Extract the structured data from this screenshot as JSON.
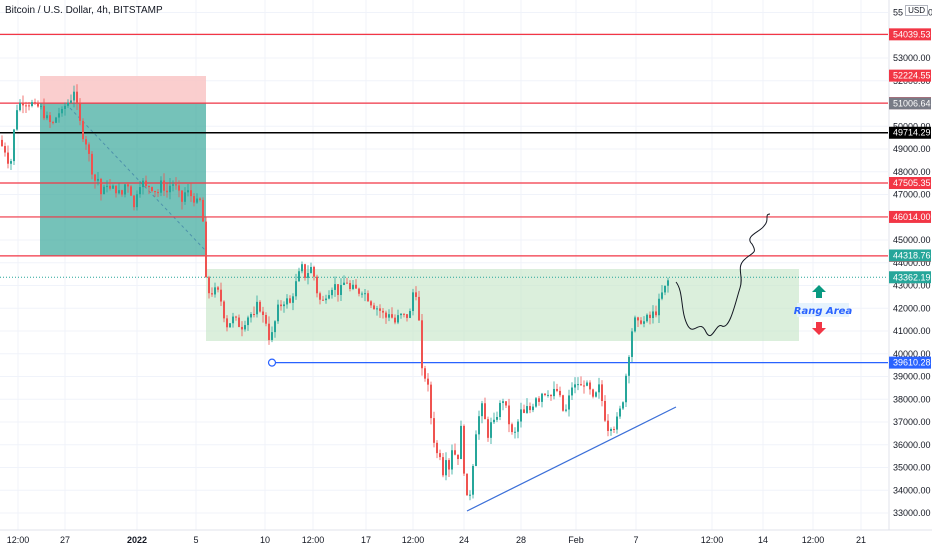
{
  "header": {
    "title": "Bitcoin / U.S. Dollar, 4h, BITSTAMP",
    "currency": "USD"
  },
  "colors": {
    "up": "#26a69a",
    "down": "#ef5350",
    "level": "#f23645",
    "black": "#000000",
    "blue": "#2962ff",
    "range": "#c8e6c9",
    "tp": "#3aa89b",
    "sl": "#f9c5c5",
    "arrow_up": "#089981",
    "arrow_down": "#f23645",
    "current": "#26a69a",
    "grey_tag": "#787b86"
  },
  "chart_data": {
    "type": "candlestick",
    "ylim": [
      32700,
      56000
    ],
    "y_ticks": [
      "55 000.00",
      "53000.00",
      "52000.00",
      "51000.00",
      "50000.00",
      "49000.00",
      "48000.00",
      "47000.00",
      "46000.00",
      "45000.00",
      "44000.00",
      "43000.00",
      "42000.00",
      "41000.00",
      "40000.00",
      "39000.00",
      "38000.00",
      "37000.00",
      "36000.00",
      "35000.00",
      "34000.00",
      "33000.00"
    ],
    "x_ticks": [
      "12:00",
      "27",
      "2022",
      "5",
      "10",
      "12:00",
      "17",
      "12:00",
      "24",
      "28",
      "Feb",
      "7",
      "12:00",
      "14",
      "12:00",
      "21"
    ],
    "levels": [
      {
        "price": "54039.53",
        "color": "#f23645"
      },
      {
        "price": "51017.57",
        "color": "#f23645"
      },
      {
        "price": "49714.29",
        "color": "#000000"
      },
      {
        "price": "47505.35",
        "color": "#f23645"
      },
      {
        "price": "46014.00",
        "color": "#f23645"
      },
      {
        "price": "44302.37",
        "color": "#f23645"
      },
      {
        "price": "39610.28",
        "color": "#2962ff"
      }
    ],
    "price_tags": [
      {
        "price": "52224.55",
        "color": "#f23645"
      },
      {
        "price": "51006.64",
        "color": "#787b86"
      },
      {
        "price": "44318.76",
        "color": "#26a69a"
      },
      {
        "price": "43362.19",
        "color": "#26a69a"
      }
    ],
    "annotations": {
      "range_label": "Rang Area"
    },
    "candle_waypoints": [
      [
        0,
        49400
      ],
      [
        3,
        49000
      ],
      [
        6,
        48900
      ],
      [
        8,
        48500
      ],
      [
        10,
        48300
      ],
      [
        12,
        48700
      ],
      [
        14,
        49800
      ],
      [
        16,
        50900
      ],
      [
        18,
        50700
      ],
      [
        20,
        51000
      ],
      [
        24,
        51100
      ],
      [
        28,
        51000
      ],
      [
        32,
        51000
      ],
      [
        36,
        50800
      ],
      [
        40,
        50900
      ],
      [
        44,
        50500
      ],
      [
        48,
        50300
      ],
      [
        52,
        50000
      ],
      [
        55,
        50300
      ],
      [
        58,
        50600
      ],
      [
        62,
        50600
      ],
      [
        66,
        51000
      ],
      [
        70,
        51100
      ],
      [
        74,
        51600
      ],
      [
        78,
        50600
      ],
      [
        82,
        49700
      ],
      [
        86,
        49300
      ],
      [
        90,
        48500
      ],
      [
        94,
        47600
      ],
      [
        98,
        47700
      ],
      [
        102,
        46800
      ],
      [
        106,
        47600
      ],
      [
        110,
        47200
      ],
      [
        114,
        47300
      ],
      [
        118,
        47100
      ],
      [
        122,
        47000
      ],
      [
        126,
        47600
      ],
      [
        130,
        47300
      ],
      [
        134,
        46400
      ],
      [
        138,
        47400
      ],
      [
        142,
        47600
      ],
      [
        146,
        47300
      ],
      [
        150,
        47400
      ],
      [
        154,
        47200
      ],
      [
        158,
        47100
      ],
      [
        162,
        47600
      ],
      [
        166,
        47000
      ],
      [
        170,
        47400
      ],
      [
        174,
        47500
      ],
      [
        178,
        47100
      ],
      [
        182,
        46700
      ],
      [
        186,
        47200
      ],
      [
        190,
        47000
      ],
      [
        194,
        46800
      ],
      [
        198,
        46600
      ],
      [
        202,
        46800
      ],
      [
        204,
        44800
      ],
      [
        206,
        43200
      ],
      [
        208,
        42800
      ],
      [
        210,
        42600
      ],
      [
        214,
        42800
      ],
      [
        218,
        42700
      ],
      [
        222,
        42200
      ],
      [
        226,
        41200
      ],
      [
        230,
        41400
      ],
      [
        234,
        41600
      ],
      [
        238,
        41300
      ],
      [
        242,
        41200
      ],
      [
        246,
        41500
      ],
      [
        250,
        41800
      ],
      [
        254,
        41600
      ],
      [
        258,
        42300
      ],
      [
        262,
        41700
      ],
      [
        266,
        41400
      ],
      [
        270,
        40500
      ],
      [
        274,
        41200
      ],
      [
        278,
        42000
      ],
      [
        282,
        42200
      ],
      [
        286,
        42400
      ],
      [
        290,
        42200
      ],
      [
        294,
        42800
      ],
      [
        298,
        43400
      ],
      [
        302,
        43800
      ],
      [
        306,
        43300
      ],
      [
        310,
        43900
      ],
      [
        314,
        43400
      ],
      [
        318,
        42500
      ],
      [
        322,
        42200
      ],
      [
        326,
        42600
      ],
      [
        330,
        42800
      ],
      [
        334,
        43100
      ],
      [
        338,
        42700
      ],
      [
        342,
        42900
      ],
      [
        346,
        43300
      ],
      [
        350,
        42800
      ],
      [
        354,
        42900
      ],
      [
        358,
        42700
      ],
      [
        362,
        42800
      ],
      [
        366,
        42600
      ],
      [
        370,
        42300
      ],
      [
        374,
        42100
      ],
      [
        378,
        42000
      ],
      [
        382,
        41800
      ],
      [
        386,
        41600
      ],
      [
        390,
        41900
      ],
      [
        394,
        41300
      ],
      [
        398,
        41600
      ],
      [
        402,
        41700
      ],
      [
        406,
        41600
      ],
      [
        410,
        41800
      ],
      [
        414,
        43000
      ],
      [
        417,
        42500
      ],
      [
        419,
        41400
      ],
      [
        421,
        39600
      ],
      [
        423,
        38800
      ],
      [
        425,
        39000
      ],
      [
        427,
        38700
      ],
      [
        429,
        38300
      ],
      [
        431,
        37200
      ],
      [
        433,
        36400
      ],
      [
        435,
        36000
      ],
      [
        437,
        35600
      ],
      [
        439,
        35300
      ],
      [
        441,
        35900
      ],
      [
        443,
        34800
      ],
      [
        445,
        35400
      ],
      [
        447,
        35600
      ],
      [
        449,
        35000
      ],
      [
        451,
        35500
      ],
      [
        453,
        36200
      ],
      [
        455,
        35600
      ],
      [
        457,
        35800
      ],
      [
        459,
        35200
      ],
      [
        461,
        36700
      ],
      [
        463,
        35300
      ],
      [
        465,
        34500
      ],
      [
        467,
        33600
      ],
      [
        469,
        33400
      ],
      [
        471,
        34400
      ],
      [
        473,
        35200
      ],
      [
        475,
        36300
      ],
      [
        477,
        36900
      ],
      [
        480,
        37400
      ],
      [
        483,
        37800
      ],
      [
        486,
        36700
      ],
      [
        489,
        36300
      ],
      [
        492,
        37200
      ],
      [
        495,
        36800
      ],
      [
        498,
        37600
      ],
      [
        501,
        37800
      ],
      [
        504,
        38100
      ],
      [
        507,
        37300
      ],
      [
        510,
        36800
      ],
      [
        513,
        36300
      ],
      [
        516,
        36600
      ],
      [
        519,
        37200
      ],
      [
        522,
        37600
      ],
      [
        525,
        37200
      ],
      [
        528,
        37800
      ],
      [
        531,
        37400
      ],
      [
        534,
        38000
      ],
      [
        537,
        38200
      ],
      [
        540,
        37900
      ],
      [
        543,
        38500
      ],
      [
        546,
        38200
      ],
      [
        549,
        38400
      ],
      [
        552,
        38000
      ],
      [
        555,
        38500
      ],
      [
        558,
        38300
      ],
      [
        561,
        37900
      ],
      [
        564,
        37300
      ],
      [
        567,
        37600
      ],
      [
        570,
        38300
      ],
      [
        573,
        38700
      ],
      [
        576,
        38500
      ],
      [
        579,
        38800
      ],
      [
        582,
        38400
      ],
      [
        585,
        38900
      ],
      [
        588,
        38400
      ],
      [
        591,
        38300
      ],
      [
        594,
        37800
      ],
      [
        597,
        38400
      ],
      [
        600,
        38600
      ],
      [
        603,
        37600
      ],
      [
        606,
        37000
      ],
      [
        609,
        36600
      ],
      [
        612,
        37000
      ],
      [
        615,
        36700
      ],
      [
        618,
        37300
      ],
      [
        621,
        37600
      ],
      [
        624,
        38200
      ],
      [
        627,
        39500
      ],
      [
        630,
        40300
      ],
      [
        633,
        41400
      ],
      [
        636,
        41500
      ],
      [
        639,
        41200
      ],
      [
        642,
        41600
      ],
      [
        645,
        41300
      ],
      [
        648,
        41700
      ],
      [
        651,
        41500
      ],
      [
        654,
        41900
      ],
      [
        657,
        41800
      ],
      [
        660,
        42500
      ],
      [
        663,
        42700
      ],
      [
        666,
        43000
      ],
      [
        669,
        43300
      ]
    ]
  }
}
